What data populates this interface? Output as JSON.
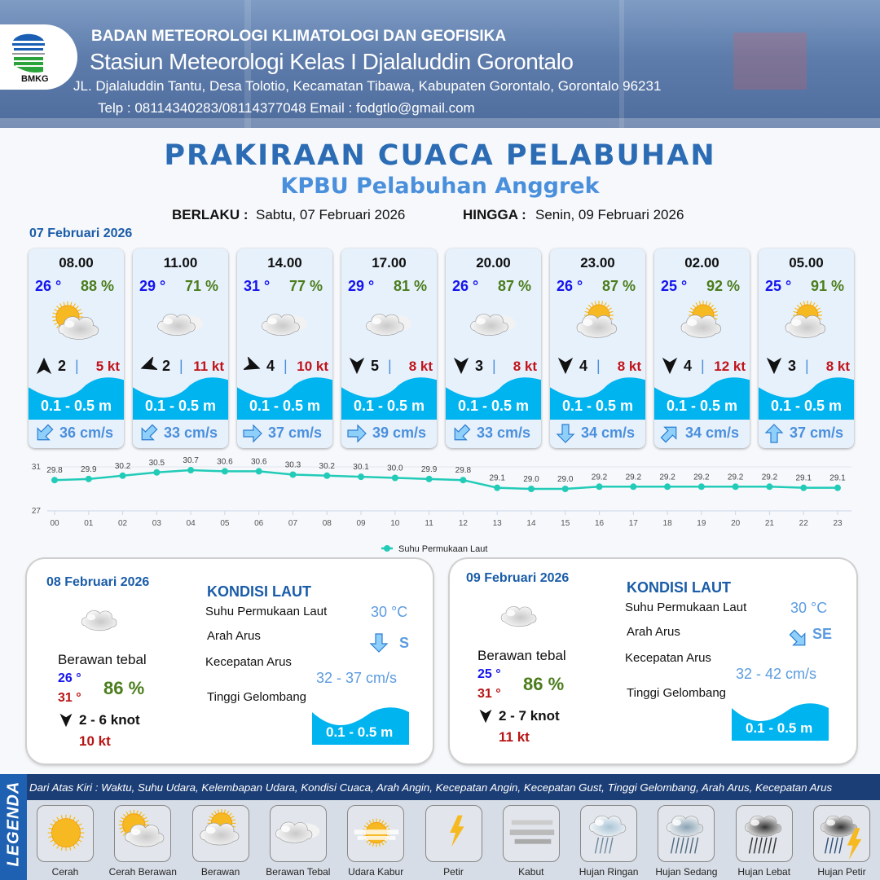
{
  "header": {
    "agency": "BADAN METEOROLOGI KLIMATOLOGI DAN GEOFISIKA",
    "station": "Stasiun Meteorologi Kelas I Djalaluddin Gorontalo",
    "address": "JL. Djalaluddin Tantu, Desa Tolotio, Kecamatan Tibawa, Kabupaten Gorontalo, Gorontalo 96231",
    "contact": "Telp : 08114340283/08114377048 Email : fodgtlo@gmail.com",
    "logo_text": "BMKG"
  },
  "title": "PRAKIRAAN CUACA PELABUHAN",
  "subtitle": "KPBU Pelabuhan Anggrek",
  "validity": {
    "from_label": "BERLAKU :",
    "from": "Sabtu, 07 Februari 2026",
    "to_label": "HINGGA :",
    "to": "Senin, 09 Februari 2026"
  },
  "day1": {
    "date": "07 Februari 2026",
    "cards": [
      {
        "time": "08.00",
        "temp": "26 °",
        "hum": "88 %",
        "icon": "cerah-berawan",
        "wind_dir": "N",
        "wind": "2",
        "gust": "5 kt",
        "wave": "0.1 - 0.5 m",
        "current_dir": "SW",
        "current": "36 cm/s"
      },
      {
        "time": "11.00",
        "temp": "29 °",
        "hum": "71 %",
        "icon": "berawan-tebal",
        "wind_dir": "WSW",
        "wind": "2",
        "gust": "11 kt",
        "wave": "0.1 - 0.5 m",
        "current_dir": "SW",
        "current": "33 cm/s"
      },
      {
        "time": "14.00",
        "temp": "31 °",
        "hum": "77 %",
        "icon": "berawan-tebal",
        "wind_dir": "ESE",
        "wind": "4",
        "gust": "10 kt",
        "wave": "0.1 - 0.5 m",
        "current_dir": "E",
        "current": "37 cm/s"
      },
      {
        "time": "17.00",
        "temp": "29 °",
        "hum": "81 %",
        "icon": "berawan-tebal",
        "wind_dir": "S",
        "wind": "5",
        "gust": "8 kt",
        "wave": "0.1 - 0.5 m",
        "current_dir": "E",
        "current": "39 cm/s"
      },
      {
        "time": "20.00",
        "temp": "26 °",
        "hum": "87 %",
        "icon": "berawan-tebal",
        "wind_dir": "S",
        "wind": "3",
        "gust": "8 kt",
        "wave": "0.1 - 0.5 m",
        "current_dir": "SW",
        "current": "33 cm/s"
      },
      {
        "time": "23.00",
        "temp": "26 °",
        "hum": "87 %",
        "icon": "berawan",
        "wind_dir": "S",
        "wind": "4",
        "gust": "8 kt",
        "wave": "0.1 - 0.5 m",
        "current_dir": "S",
        "current": "34 cm/s"
      },
      {
        "time": "02.00",
        "temp": "25 °",
        "hum": "92 %",
        "icon": "berawan",
        "wind_dir": "S",
        "wind": "4",
        "gust": "12 kt",
        "wave": "0.1 - 0.5 m",
        "current_dir": "NE",
        "current": "34 cm/s"
      },
      {
        "time": "05.00",
        "temp": "25 °",
        "hum": "91 %",
        "icon": "berawan",
        "wind_dir": "S",
        "wind": "3",
        "gust": "8 kt",
        "wave": "0.1 - 0.5 m",
        "current_dir": "N",
        "current": "37 cm/s"
      }
    ]
  },
  "chart_data": {
    "type": "line",
    "categories": [
      "00",
      "01",
      "02",
      "03",
      "04",
      "05",
      "06",
      "07",
      "08",
      "09",
      "10",
      "11",
      "12",
      "13",
      "14",
      "15",
      "16",
      "17",
      "18",
      "19",
      "20",
      "21",
      "22",
      "23"
    ],
    "series": [
      {
        "name": "Suhu Permukaan Laut",
        "values": [
          29.8,
          29.9,
          30.2,
          30.5,
          30.7,
          30.6,
          30.6,
          30.3,
          30.2,
          30.1,
          30.0,
          29.9,
          29.8,
          29.1,
          29.0,
          29.0,
          29.2,
          29.2,
          29.2,
          29.2,
          29.2,
          29.2,
          29.1,
          29.1
        ],
        "color": "#22cbb8"
      }
    ],
    "yticks": [
      "27",
      "31"
    ],
    "ylim": [
      27,
      31
    ],
    "grid": true,
    "legend": "bottom"
  },
  "panels": [
    {
      "date": "08 Februari 2026",
      "icon": "berawan-tebal",
      "condition": "Berawan tebal",
      "tmin": "26 °",
      "tmax": "31 °",
      "hum": "86 %",
      "wind_dir": "S",
      "wind": "2 - 6 knot",
      "gust": "10 kt",
      "sea_title": "KONDISI LAUT",
      "sst_label": "Suhu Permukaan Laut",
      "sst": "30 °C",
      "dir_label": "Arah Arus",
      "current_dir": "S",
      "speed_label": "Kecepatan Arus",
      "speed": "32  - 37 cm/s",
      "wave_label": "Tinggi Gelombang",
      "wave": "0.1 - 0.5 m"
    },
    {
      "date": "09 Februari 2026",
      "icon": "berawan-tebal",
      "condition": "Berawan tebal",
      "tmin": "25 °",
      "tmax": "31 °",
      "hum": "86 %",
      "wind_dir": "S",
      "wind": "2  - 7 knot",
      "gust": "11 kt",
      "sea_title": "KONDISI LAUT",
      "sst_label": "Suhu Permukaan Laut",
      "sst": "30 °C",
      "dir_label": "Arah Arus",
      "current_dir": "SE",
      "speed_label": "Kecepatan Arus",
      "speed": "32 - 42 cm/s",
      "wave_label": "Tinggi Gelombang",
      "wave": "0.1 - 0.5 m"
    }
  ],
  "legend": {
    "title": "LEGENDA",
    "description": "Dari Atas Kiri : Waktu, Suhu Udara, Kelembapan Udara, Kondisi Cuaca, Arah Angin, Kecepatan Angin, Kecepatan Gust, Tinggi Gelombang, Arah Arus, Kecepatan Arus",
    "items": [
      {
        "icon": "cerah",
        "label": "Cerah"
      },
      {
        "icon": "cerah-berawan",
        "label": "Cerah Berawan"
      },
      {
        "icon": "berawan",
        "label": "Berawan"
      },
      {
        "icon": "berawan-tebal",
        "label": "Berawan Tebal"
      },
      {
        "icon": "udara-kabur",
        "label": "Udara Kabur"
      },
      {
        "icon": "petir",
        "label": "Petir"
      },
      {
        "icon": "kabut",
        "label": "Kabut"
      },
      {
        "icon": "hujan-ringan",
        "label": "Hujan Ringan"
      },
      {
        "icon": "hujan-sedang",
        "label": "Hujan Sedang"
      },
      {
        "icon": "hujan-lebat",
        "label": "Hujan Lebat"
      },
      {
        "icon": "hujan-petir",
        "label": "Hujan Petir"
      }
    ]
  },
  "colors": {
    "title": "#2b6cb4",
    "wave": "#00b4f0",
    "temp": "#1414ee",
    "humidity": "#4b7d1c",
    "gust": "#c0141a",
    "current": "#4a8fdc"
  }
}
